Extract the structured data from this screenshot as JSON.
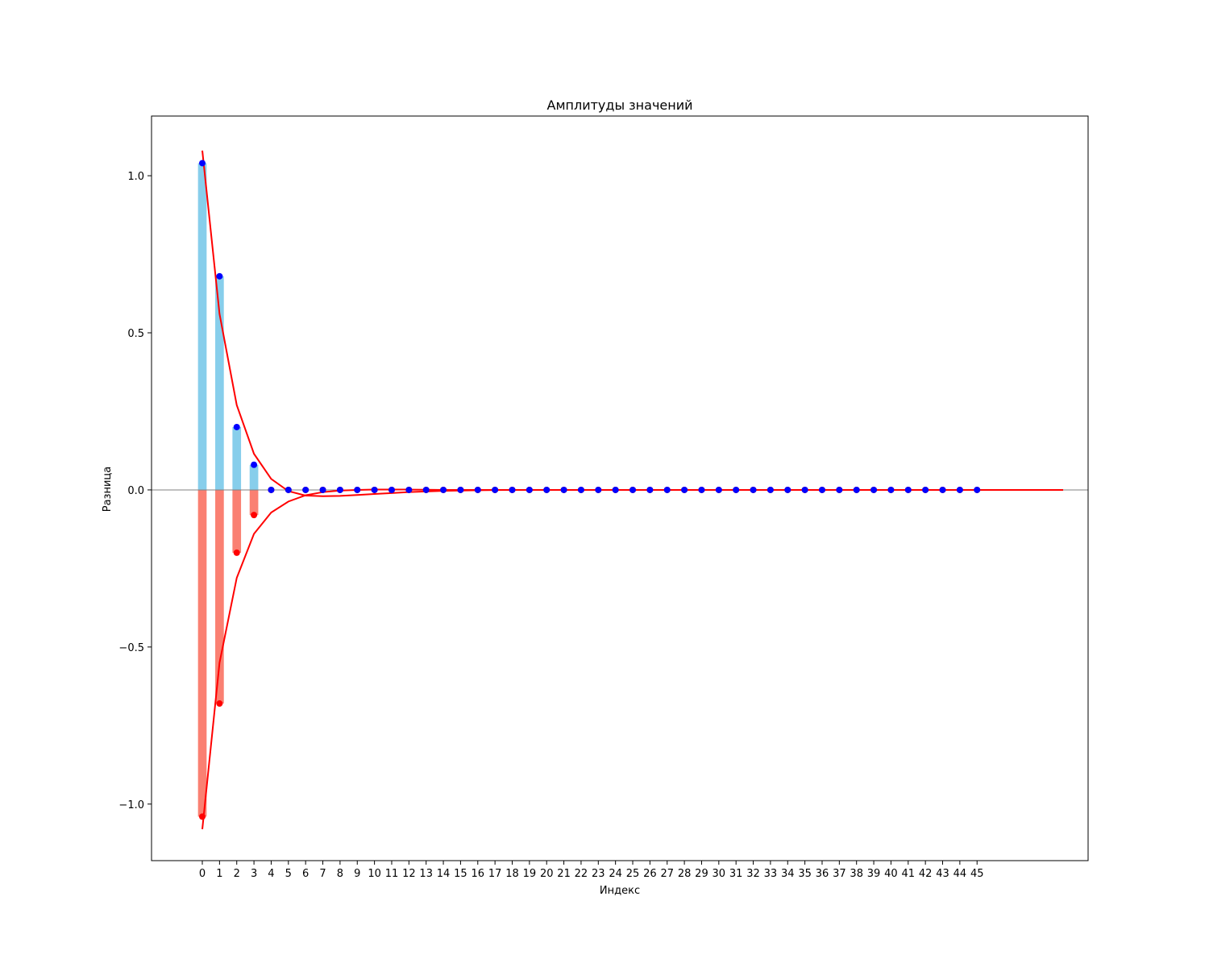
{
  "chart_data": {
    "type": "bar",
    "title": "Амплитуды значений",
    "xlabel": "Индекс",
    "ylabel": "Разница",
    "xlim": [
      -2.95,
      51.45
    ],
    "ylim": [
      -1.18,
      1.19
    ],
    "yticks": [
      -1.0,
      -0.5,
      0.0,
      0.5,
      1.0
    ],
    "ytick_labels": [
      "−1.0",
      "−0.5",
      "0.0",
      "0.5",
      "1.0"
    ],
    "x": [
      0,
      1,
      2,
      3,
      4,
      5,
      6,
      7,
      8,
      9,
      10,
      11,
      12,
      13,
      14,
      15,
      16,
      17,
      18,
      19,
      20,
      21,
      22,
      23,
      24,
      25,
      26,
      27,
      28,
      29,
      30,
      31,
      32,
      33,
      34,
      35,
      36,
      37,
      38,
      39,
      40,
      41,
      42,
      43,
      44,
      45
    ],
    "xtick_labels": [
      "0",
      "1",
      "2",
      "3",
      "4",
      "5",
      "6",
      "7",
      "8",
      "9",
      "10",
      "11",
      "12",
      "13",
      "14",
      "15",
      "16",
      "17",
      "18",
      "19",
      "20",
      "21",
      "22",
      "23",
      "24",
      "25",
      "26",
      "27",
      "28",
      "29",
      "30",
      "31",
      "32",
      "33",
      "34",
      "35",
      "36",
      "37",
      "38",
      "39",
      "40",
      "41",
      "42",
      "43",
      "44",
      "45"
    ],
    "series": [
      {
        "kind": "bar",
        "color": "#87CEEB",
        "values": [
          1.04,
          0.68,
          0.2,
          0.08,
          0,
          0,
          0,
          0,
          0,
          0,
          0,
          0,
          0,
          0,
          0,
          0,
          0,
          0,
          0,
          0,
          0,
          0,
          0,
          0,
          0,
          0,
          0,
          0,
          0,
          0,
          0,
          0,
          0,
          0,
          0,
          0,
          0,
          0,
          0,
          0,
          0,
          0,
          0,
          0,
          0,
          0
        ]
      },
      {
        "kind": "bar",
        "color": "#FA8072",
        "values": [
          -1.04,
          -0.68,
          -0.2,
          -0.08,
          0,
          0,
          0,
          0,
          0,
          0,
          0,
          0,
          0,
          0,
          0,
          0,
          0,
          0,
          0,
          0,
          0,
          0,
          0,
          0,
          0,
          0,
          0,
          0,
          0,
          0,
          0,
          0,
          0,
          0,
          0,
          0,
          0,
          0,
          0,
          0,
          0,
          0,
          0,
          0,
          0,
          0
        ]
      },
      {
        "kind": "scatter",
        "color": "#ff0000",
        "values": [
          -1.04,
          -0.68,
          -0.2,
          -0.08,
          0,
          0,
          0,
          0,
          0,
          0,
          0,
          0,
          0,
          0,
          0,
          0,
          0,
          0,
          0,
          0,
          0,
          0,
          0,
          0,
          0,
          0,
          0,
          0,
          0,
          0,
          0,
          0,
          0,
          0,
          0,
          0,
          0,
          0,
          0,
          0,
          0,
          0,
          0,
          0,
          0,
          0
        ]
      },
      {
        "kind": "scatter",
        "color": "#0000ff",
        "values": [
          1.04,
          0.68,
          0.2,
          0.08,
          0,
          0,
          0,
          0,
          0,
          0,
          0,
          0,
          0,
          0,
          0,
          0,
          0,
          0,
          0,
          0,
          0,
          0,
          0,
          0,
          0,
          0,
          0,
          0,
          0,
          0,
          0,
          0,
          0,
          0,
          0,
          0,
          0,
          0,
          0,
          0,
          0,
          0,
          0,
          0,
          0,
          0
        ]
      },
      {
        "kind": "line",
        "color": "#ff0000",
        "x": [
          0,
          1,
          2,
          3,
          4,
          5,
          6,
          7,
          8,
          9,
          10,
          11,
          12,
          13,
          14,
          15,
          16,
          17,
          18,
          19,
          20,
          21,
          22,
          23,
          24,
          25,
          26,
          27,
          28,
          29,
          30,
          31,
          32,
          33,
          34,
          35,
          36,
          37,
          38,
          39,
          40,
          41,
          42,
          43,
          44,
          45,
          46,
          47,
          48,
          49,
          50
        ],
        "values": [
          1.08,
          0.56,
          0.27,
          0.115,
          0.035,
          -0.004,
          -0.018,
          -0.02,
          -0.019,
          -0.016,
          -0.013,
          -0.01,
          -0.007,
          -0.005,
          -0.003,
          -0.002,
          -0.001,
          -0.0005,
          0,
          0,
          0,
          0,
          0,
          0,
          0,
          0,
          0,
          0,
          0,
          0,
          0,
          0,
          0,
          0,
          0,
          0,
          0,
          0,
          0,
          0,
          0,
          0,
          0,
          0,
          0,
          0,
          0,
          0,
          0,
          0,
          0
        ]
      },
      {
        "kind": "line",
        "color": "#ff0000",
        "x": [
          0,
          1,
          2,
          3,
          4,
          5,
          6,
          7,
          8,
          9,
          10,
          11,
          12,
          13,
          14,
          15,
          16,
          17,
          18,
          19,
          20,
          21,
          22,
          23,
          24,
          25,
          26,
          27,
          28,
          29,
          30,
          31,
          32,
          33,
          34,
          35,
          36,
          37,
          38,
          39,
          40,
          41,
          42,
          43,
          44,
          45,
          46,
          47,
          48,
          49,
          50
        ],
        "values": [
          -1.08,
          -0.55,
          -0.28,
          -0.14,
          -0.072,
          -0.037,
          -0.017,
          -0.007,
          -0.002,
          0,
          0.001,
          0.001,
          0.001,
          0.0005,
          0,
          0,
          0,
          0,
          0,
          0,
          0,
          0,
          0,
          0,
          0,
          0,
          0,
          0,
          0,
          0,
          0,
          0,
          0,
          0,
          0,
          0,
          0,
          0,
          0,
          0,
          0,
          0,
          0,
          0,
          0,
          0,
          0,
          0,
          0,
          0,
          0
        ]
      }
    ],
    "zero_line_color": "#808080",
    "grid": false
  }
}
